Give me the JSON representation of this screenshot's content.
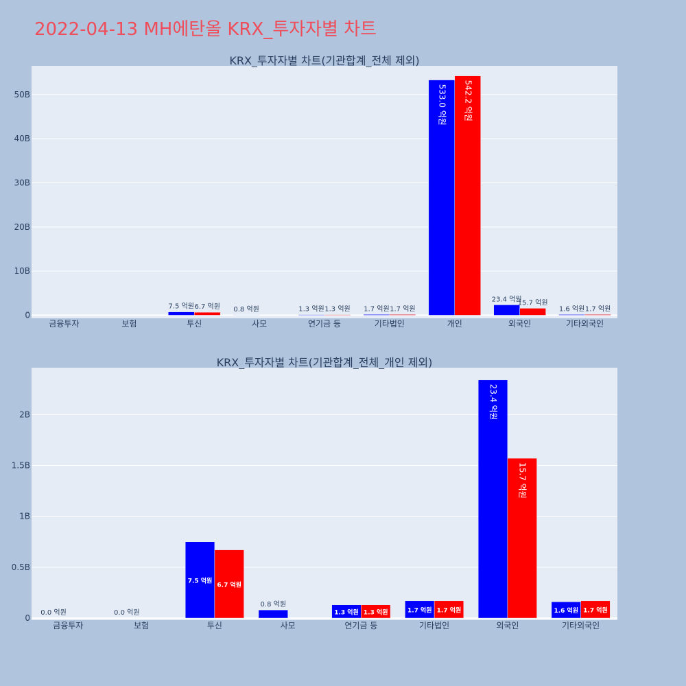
{
  "page": {
    "title": "2022-04-13 MH에탄올 KRX_투자자별 차트"
  },
  "colors": {
    "buy": "#0000ff",
    "sell": "#ff0000",
    "plot_bg": "#e5ecf6",
    "page_bg": "#b0c4de",
    "title": "#ef4d5a",
    "text": "#2a3f5f"
  },
  "chart_data": [
    {
      "type": "bar",
      "title": "KRX_투자자별 차트(기관합계_전체 제외)",
      "categories": [
        "금융투자",
        "보험",
        "투신",
        "사모",
        "연기금 등",
        "기타법인",
        "개인",
        "외국인",
        "기타외국인"
      ],
      "ylim": [
        -0.7,
        56.5
      ],
      "yticks": [
        0,
        10,
        20,
        30,
        40,
        50
      ],
      "ytick_labels": [
        "0",
        "10B",
        "20B",
        "30B",
        "40B",
        "50B"
      ],
      "series": [
        {
          "values": [
            null,
            null,
            0.75,
            0.08,
            0.13,
            0.17,
            53.3,
            2.34,
            0.16
          ],
          "labels": [
            "",
            "",
            "7.5 억원",
            "0.8 억원",
            "1.3 억원",
            "1.7 억원",
            "533.0 억원",
            "23.4 억원",
            "1.6 억원"
          ]
        },
        {
          "values": [
            null,
            null,
            0.67,
            null,
            0.13,
            0.17,
            54.22,
            1.57,
            0.17
          ],
          "labels": [
            "",
            "",
            "6.7 억원",
            "",
            "1.3 억원",
            "1.7 억원",
            "542.2 억원",
            "15.7 억원",
            "1.7 억원"
          ]
        }
      ]
    },
    {
      "type": "bar",
      "title": "KRX_투자자별 차트(기관합계_전체_개인 제외)",
      "categories": [
        "금융투자",
        "보험",
        "투신",
        "사모",
        "연기금 등",
        "기타법인",
        "외국인",
        "기타외국인"
      ],
      "ylim": [
        -0.02,
        2.46
      ],
      "yticks": [
        0,
        0.5,
        1,
        1.5,
        2
      ],
      "ytick_labels": [
        "0",
        "0.5B",
        "1B",
        "1.5B",
        "2B"
      ],
      "series": [
        {
          "values": [
            0,
            0,
            0.75,
            0.08,
            0.13,
            0.17,
            2.34,
            0.16
          ],
          "labels": [
            "0.0 억원",
            "0.0 억원",
            "7.5 억원",
            "0.8 억원",
            "1.3 억원",
            "1.7 억원",
            "23.4 억원",
            "1.6 억원"
          ]
        },
        {
          "values": [
            null,
            null,
            0.67,
            null,
            0.13,
            0.17,
            1.57,
            0.17
          ],
          "labels": [
            "",
            "",
            "6.7 억원",
            "",
            "1.3 억원",
            "1.7 억원",
            "15.7 억원",
            "1.7 억원"
          ]
        }
      ]
    }
  ]
}
